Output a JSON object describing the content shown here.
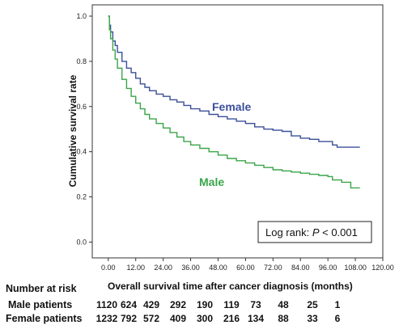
{
  "chart_data": {
    "type": "line",
    "xlabel": "Overall survival time after cancer diagnosis (months)",
    "ylabel": "Cumulative survival rate",
    "xlim": [
      -7,
      120
    ],
    "ylim": [
      -0.07,
      1.05
    ],
    "xticks": [
      0,
      12,
      24,
      36,
      48,
      60,
      72,
      84,
      96,
      108,
      120
    ],
    "xtick_labels": [
      "0.00",
      "12.00",
      "24.00",
      "36.00",
      "48.00",
      "60.00",
      "72.00",
      "84.00",
      "96.00",
      "108.00",
      "120.00"
    ],
    "yticks": [
      0,
      0.2,
      0.4,
      0.6,
      0.8,
      1.0
    ],
    "ytick_labels": [
      "0.0",
      "0.2",
      "0.4",
      "0.6",
      "0.8",
      "1.0"
    ],
    "grid": false,
    "annotation": {
      "prefix": "Log rank: ",
      "italic": "P",
      "suffix": " < 0.001"
    },
    "series": [
      {
        "name": "Female",
        "color": "#3b4f9a",
        "points": [
          [
            0,
            1.0
          ],
          [
            0.5,
            0.96
          ],
          [
            1,
            0.93
          ],
          [
            2,
            0.89
          ],
          [
            3,
            0.87
          ],
          [
            4,
            0.84
          ],
          [
            6,
            0.8
          ],
          [
            8,
            0.77
          ],
          [
            10,
            0.75
          ],
          [
            12,
            0.725
          ],
          [
            14,
            0.7
          ],
          [
            16,
            0.685
          ],
          [
            18,
            0.67
          ],
          [
            21,
            0.655
          ],
          [
            24,
            0.645
          ],
          [
            27,
            0.63
          ],
          [
            30,
            0.62
          ],
          [
            33,
            0.605
          ],
          [
            36,
            0.59
          ],
          [
            40,
            0.58
          ],
          [
            44,
            0.565
          ],
          [
            48,
            0.555
          ],
          [
            52,
            0.545
          ],
          [
            56,
            0.535
          ],
          [
            60,
            0.525
          ],
          [
            64,
            0.51
          ],
          [
            68,
            0.5
          ],
          [
            72,
            0.495
          ],
          [
            76,
            0.49
          ],
          [
            80,
            0.47
          ],
          [
            84,
            0.46
          ],
          [
            88,
            0.455
          ],
          [
            92,
            0.445
          ],
          [
            96,
            0.445
          ],
          [
            98,
            0.43
          ],
          [
            100,
            0.42
          ],
          [
            110,
            0.42
          ]
        ]
      },
      {
        "name": "Male",
        "color": "#3aa54a",
        "points": [
          [
            0,
            1.0
          ],
          [
            0.5,
            0.94
          ],
          [
            1,
            0.9
          ],
          [
            2,
            0.85
          ],
          [
            3,
            0.81
          ],
          [
            4,
            0.77
          ],
          [
            6,
            0.72
          ],
          [
            8,
            0.68
          ],
          [
            10,
            0.645
          ],
          [
            12,
            0.615
          ],
          [
            14,
            0.59
          ],
          [
            16,
            0.565
          ],
          [
            18,
            0.545
          ],
          [
            21,
            0.525
          ],
          [
            24,
            0.505
          ],
          [
            27,
            0.485
          ],
          [
            30,
            0.465
          ],
          [
            33,
            0.445
          ],
          [
            36,
            0.43
          ],
          [
            40,
            0.415
          ],
          [
            44,
            0.4
          ],
          [
            48,
            0.385
          ],
          [
            52,
            0.37
          ],
          [
            56,
            0.36
          ],
          [
            60,
            0.35
          ],
          [
            64,
            0.34
          ],
          [
            68,
            0.33
          ],
          [
            72,
            0.32
          ],
          [
            76,
            0.315
          ],
          [
            80,
            0.31
          ],
          [
            84,
            0.305
          ],
          [
            88,
            0.3
          ],
          [
            92,
            0.295
          ],
          [
            96,
            0.29
          ],
          [
            98,
            0.275
          ],
          [
            102,
            0.265
          ],
          [
            106,
            0.24
          ],
          [
            110,
            0.24
          ]
        ]
      }
    ]
  },
  "risk_table": {
    "title": "Number at risk",
    "rows": [
      {
        "label": "Male patients",
        "values": [
          "1120",
          "624",
          "429",
          "292",
          "190",
          "119",
          "73",
          "48",
          "25",
          "1"
        ]
      },
      {
        "label": "Female patients",
        "values": [
          "1232",
          "792",
          "572",
          "409",
          "300",
          "216",
          "134",
          "88",
          "33",
          "6"
        ]
      }
    ]
  }
}
